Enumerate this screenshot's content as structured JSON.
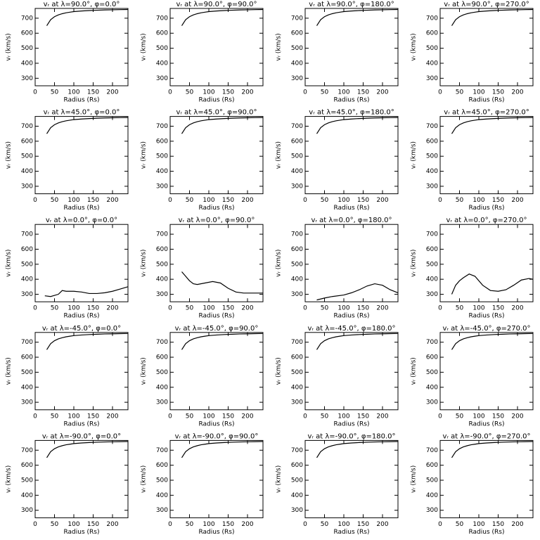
{
  "chart_data": [
    {
      "type": "line",
      "title": "vᵣ at λ=90.0°, φ=0.0°",
      "xlabel": "Radius (Rs)",
      "ylabel": "vᵣ (km/s)",
      "x": [
        30,
        40,
        50,
        60,
        70,
        80,
        90,
        100,
        120,
        140,
        160,
        180,
        200,
        220,
        240
      ],
      "values": [
        650,
        690,
        710,
        722,
        730,
        736,
        740,
        744,
        748,
        751,
        753,
        755,
        756,
        757,
        758
      ],
      "color": "#000000",
      "xlim": [
        0,
        240
      ],
      "ylim": [
        250,
        765
      ],
      "xticks": [
        0,
        50,
        100,
        150,
        200
      ],
      "yticks": [
        300,
        400,
        500,
        600,
        700
      ]
    },
    {
      "type": "line",
      "title": "vᵣ at λ=90.0°, φ=90.0°",
      "xlabel": "Radius (Rs)",
      "ylabel": "vᵣ (km/s)",
      "x": [
        30,
        40,
        50,
        60,
        70,
        80,
        90,
        100,
        120,
        140,
        160,
        180,
        200,
        220,
        240
      ],
      "values": [
        650,
        690,
        710,
        722,
        730,
        736,
        740,
        744,
        748,
        751,
        753,
        755,
        756,
        757,
        758
      ],
      "color": "#000000",
      "xlim": [
        0,
        240
      ],
      "ylim": [
        250,
        765
      ],
      "xticks": [
        0,
        50,
        100,
        150,
        200
      ],
      "yticks": [
        300,
        400,
        500,
        600,
        700
      ]
    },
    {
      "type": "line",
      "title": "vᵣ at λ=90.0°, φ=180.0°",
      "xlabel": "Radius (Rs)",
      "ylabel": "vᵣ (km/s)",
      "x": [
        30,
        40,
        50,
        60,
        70,
        80,
        90,
        100,
        120,
        140,
        160,
        180,
        200,
        220,
        240
      ],
      "values": [
        650,
        690,
        710,
        722,
        730,
        736,
        740,
        744,
        748,
        751,
        753,
        755,
        756,
        757,
        758
      ],
      "color": "#000000",
      "xlim": [
        0,
        240
      ],
      "ylim": [
        250,
        765
      ],
      "xticks": [
        0,
        50,
        100,
        150,
        200
      ],
      "yticks": [
        300,
        400,
        500,
        600,
        700
      ]
    },
    {
      "type": "line",
      "title": "vᵣ at λ=90.0°, φ=270.0°",
      "xlabel": "Radius (Rs)",
      "ylabel": "vᵣ (km/s)",
      "x": [
        30,
        40,
        50,
        60,
        70,
        80,
        90,
        100,
        120,
        140,
        160,
        180,
        200,
        220,
        240
      ],
      "values": [
        650,
        690,
        710,
        722,
        730,
        736,
        740,
        744,
        748,
        751,
        753,
        755,
        756,
        757,
        758
      ],
      "color": "#000000",
      "xlim": [
        0,
        240
      ],
      "ylim": [
        250,
        765
      ],
      "xticks": [
        0,
        50,
        100,
        150,
        200
      ],
      "yticks": [
        300,
        400,
        500,
        600,
        700
      ]
    },
    {
      "type": "line",
      "title": "vᵣ at λ=45.0°, φ=0.0°",
      "xlabel": "Radius (Rs)",
      "ylabel": "vᵣ (km/s)",
      "x": [
        30,
        40,
        50,
        60,
        70,
        80,
        90,
        100,
        120,
        140,
        160,
        180,
        200,
        220,
        240
      ],
      "values": [
        650,
        690,
        710,
        722,
        730,
        736,
        740,
        744,
        748,
        751,
        753,
        755,
        756,
        757,
        758
      ],
      "color": "#000000",
      "xlim": [
        0,
        240
      ],
      "ylim": [
        250,
        765
      ],
      "xticks": [
        0,
        50,
        100,
        150,
        200
      ],
      "yticks": [
        300,
        400,
        500,
        600,
        700
      ]
    },
    {
      "type": "line",
      "title": "vᵣ at λ=45.0°, φ=90.0°",
      "xlabel": "Radius (Rs)",
      "ylabel": "vᵣ (km/s)",
      "x": [
        30,
        40,
        50,
        60,
        70,
        80,
        90,
        100,
        120,
        140,
        160,
        180,
        200,
        220,
        240
      ],
      "values": [
        650,
        690,
        710,
        722,
        730,
        736,
        740,
        744,
        748,
        751,
        753,
        755,
        756,
        757,
        758
      ],
      "color": "#000000",
      "xlim": [
        0,
        240
      ],
      "ylim": [
        250,
        765
      ],
      "xticks": [
        0,
        50,
        100,
        150,
        200
      ],
      "yticks": [
        300,
        400,
        500,
        600,
        700
      ]
    },
    {
      "type": "line",
      "title": "vᵣ at λ=45.0°, φ=180.0°",
      "xlabel": "Radius (Rs)",
      "ylabel": "vᵣ (km/s)",
      "x": [
        30,
        40,
        50,
        60,
        70,
        80,
        90,
        100,
        120,
        140,
        160,
        180,
        200,
        220,
        240
      ],
      "values": [
        650,
        690,
        710,
        722,
        730,
        736,
        740,
        744,
        748,
        751,
        753,
        755,
        756,
        757,
        758
      ],
      "color": "#000000",
      "xlim": [
        0,
        240
      ],
      "ylim": [
        250,
        765
      ],
      "xticks": [
        0,
        50,
        100,
        150,
        200
      ],
      "yticks": [
        300,
        400,
        500,
        600,
        700
      ]
    },
    {
      "type": "line",
      "title": "vᵣ at λ=45.0°, φ=270.0°",
      "xlabel": "Radius (Rs)",
      "ylabel": "vᵣ (km/s)",
      "x": [
        30,
        40,
        50,
        60,
        70,
        80,
        90,
        100,
        120,
        140,
        160,
        180,
        200,
        220,
        240
      ],
      "values": [
        650,
        690,
        710,
        722,
        730,
        736,
        740,
        744,
        748,
        751,
        753,
        755,
        756,
        757,
        758
      ],
      "color": "#000000",
      "xlim": [
        0,
        240
      ],
      "ylim": [
        250,
        765
      ],
      "xticks": [
        0,
        50,
        100,
        150,
        200
      ],
      "yticks": [
        300,
        400,
        500,
        600,
        700
      ]
    },
    {
      "type": "line",
      "title": "vᵣ at λ=0.0°, φ=0.0°",
      "xlabel": "Radius (Rs)",
      "ylabel": "vᵣ (km/s)",
      "x": [
        25,
        40,
        60,
        70,
        80,
        100,
        120,
        140,
        160,
        180,
        200,
        220,
        240
      ],
      "values": [
        290,
        285,
        300,
        325,
        320,
        320,
        315,
        305,
        305,
        310,
        320,
        335,
        350
      ],
      "color": "#000000",
      "xlim": [
        0,
        240
      ],
      "ylim": [
        250,
        765
      ],
      "xticks": [
        0,
        50,
        100,
        150,
        200
      ],
      "yticks": [
        300,
        400,
        500,
        600,
        700
      ]
    },
    {
      "type": "line",
      "title": "vᵣ at λ=0.0°, φ=90.0°",
      "xlabel": "Radius (Rs)",
      "ylabel": "vᵣ (km/s)",
      "x": [
        30,
        40,
        50,
        60,
        70,
        90,
        110,
        130,
        150,
        170,
        190,
        220,
        240
      ],
      "values": [
        450,
        420,
        390,
        370,
        365,
        375,
        385,
        375,
        340,
        315,
        308,
        308,
        308
      ],
      "color": "#000000",
      "xlim": [
        0,
        240
      ],
      "ylim": [
        250,
        765
      ],
      "xticks": [
        0,
        50,
        100,
        150,
        200
      ],
      "yticks": [
        300,
        400,
        500,
        600,
        700
      ]
    },
    {
      "type": "line",
      "title": "vᵣ at λ=0.0°, φ=180.0°",
      "xlabel": "Radius (Rs)",
      "ylabel": "vᵣ (km/s)",
      "x": [
        30,
        50,
        70,
        100,
        120,
        140,
        160,
        180,
        200,
        220,
        240
      ],
      "values": [
        262,
        275,
        285,
        295,
        310,
        330,
        355,
        370,
        360,
        330,
        310
      ],
      "color": "#000000",
      "xlim": [
        0,
        240
      ],
      "ylim": [
        250,
        765
      ],
      "xticks": [
        0,
        50,
        100,
        150,
        200
      ],
      "yticks": [
        300,
        400,
        500,
        600,
        700
      ]
    },
    {
      "type": "line",
      "title": "vᵣ at λ=0.0°, φ=270.0°",
      "xlabel": "Radius (Rs)",
      "ylabel": "vᵣ (km/s)",
      "x": [
        30,
        40,
        50,
        60,
        75,
        90,
        110,
        130,
        150,
        170,
        190,
        210,
        230,
        240
      ],
      "values": [
        300,
        360,
        390,
        410,
        435,
        420,
        360,
        325,
        320,
        330,
        360,
        395,
        405,
        400
      ],
      "color": "#000000",
      "xlim": [
        0,
        240
      ],
      "ylim": [
        250,
        765
      ],
      "xticks": [
        0,
        50,
        100,
        150,
        200
      ],
      "yticks": [
        300,
        400,
        500,
        600,
        700
      ]
    },
    {
      "type": "line",
      "title": "vᵣ at λ=-45.0°, φ=0.0°",
      "xlabel": "Radius (Rs)",
      "ylabel": "vᵣ (km/s)",
      "x": [
        30,
        40,
        50,
        60,
        70,
        80,
        90,
        100,
        120,
        140,
        160,
        180,
        200,
        220,
        240
      ],
      "values": [
        650,
        690,
        710,
        722,
        730,
        736,
        740,
        744,
        748,
        751,
        753,
        755,
        756,
        757,
        758
      ],
      "color": "#000000",
      "xlim": [
        0,
        240
      ],
      "ylim": [
        250,
        765
      ],
      "xticks": [
        0,
        50,
        100,
        150,
        200
      ],
      "yticks": [
        300,
        400,
        500,
        600,
        700
      ]
    },
    {
      "type": "line",
      "title": "vᵣ at λ=-45.0°, φ=90.0°",
      "xlabel": "Radius (Rs)",
      "ylabel": "vᵣ (km/s)",
      "x": [
        30,
        40,
        50,
        60,
        70,
        80,
        90,
        100,
        120,
        140,
        160,
        180,
        200,
        220,
        240
      ],
      "values": [
        650,
        690,
        710,
        722,
        730,
        736,
        740,
        744,
        748,
        751,
        753,
        755,
        756,
        757,
        758
      ],
      "color": "#000000",
      "xlim": [
        0,
        240
      ],
      "ylim": [
        250,
        765
      ],
      "xticks": [
        0,
        50,
        100,
        150,
        200
      ],
      "yticks": [
        300,
        400,
        500,
        600,
        700
      ]
    },
    {
      "type": "line",
      "title": "vᵣ at λ=-45.0°, φ=180.0°",
      "xlabel": "Radius (Rs)",
      "ylabel": "vᵣ (km/s)",
      "x": [
        30,
        40,
        50,
        60,
        70,
        80,
        90,
        100,
        120,
        140,
        160,
        180,
        200,
        220,
        240
      ],
      "values": [
        650,
        690,
        710,
        722,
        730,
        736,
        740,
        744,
        748,
        751,
        753,
        755,
        756,
        757,
        758
      ],
      "color": "#000000",
      "xlim": [
        0,
        240
      ],
      "ylim": [
        250,
        765
      ],
      "xticks": [
        0,
        50,
        100,
        150,
        200
      ],
      "yticks": [
        300,
        400,
        500,
        600,
        700
      ]
    },
    {
      "type": "line",
      "title": "vᵣ at λ=-45.0°, φ=270.0°",
      "xlabel": "Radius (Rs)",
      "ylabel": "vᵣ (km/s)",
      "x": [
        30,
        40,
        50,
        60,
        70,
        80,
        90,
        100,
        120,
        140,
        160,
        180,
        200,
        220,
        240
      ],
      "values": [
        650,
        690,
        710,
        722,
        730,
        736,
        740,
        744,
        748,
        751,
        753,
        755,
        756,
        757,
        758
      ],
      "color": "#000000",
      "xlim": [
        0,
        240
      ],
      "ylim": [
        250,
        765
      ],
      "xticks": [
        0,
        50,
        100,
        150,
        200
      ],
      "yticks": [
        300,
        400,
        500,
        600,
        700
      ]
    },
    {
      "type": "line",
      "title": "vᵣ at λ=-90.0°, φ=0.0°",
      "xlabel": "Radius (Rs)",
      "ylabel": "vᵣ (km/s)",
      "x": [
        30,
        40,
        50,
        60,
        70,
        80,
        90,
        100,
        120,
        140,
        160,
        180,
        200,
        220,
        240
      ],
      "values": [
        650,
        690,
        710,
        722,
        730,
        736,
        740,
        744,
        748,
        751,
        753,
        755,
        756,
        757,
        758
      ],
      "color": "#000000",
      "xlim": [
        0,
        240
      ],
      "ylim": [
        250,
        765
      ],
      "xticks": [
        0,
        50,
        100,
        150,
        200
      ],
      "yticks": [
        300,
        400,
        500,
        600,
        700
      ]
    },
    {
      "type": "line",
      "title": "vᵣ at λ=-90.0°, φ=90.0°",
      "xlabel": "Radius (Rs)",
      "ylabel": "vᵣ (km/s)",
      "x": [
        30,
        40,
        50,
        60,
        70,
        80,
        90,
        100,
        120,
        140,
        160,
        180,
        200,
        220,
        240
      ],
      "values": [
        650,
        690,
        710,
        722,
        730,
        736,
        740,
        744,
        748,
        751,
        753,
        755,
        756,
        757,
        758
      ],
      "color": "#000000",
      "xlim": [
        0,
        240
      ],
      "ylim": [
        250,
        765
      ],
      "xticks": [
        0,
        50,
        100,
        150,
        200
      ],
      "yticks": [
        300,
        400,
        500,
        600,
        700
      ]
    },
    {
      "type": "line",
      "title": "vᵣ at λ=-90.0°, φ=180.0°",
      "xlabel": "Radius (Rs)",
      "ylabel": "vᵣ (km/s)",
      "x": [
        30,
        40,
        50,
        60,
        70,
        80,
        90,
        100,
        120,
        140,
        160,
        180,
        200,
        220,
        240
      ],
      "values": [
        650,
        690,
        710,
        722,
        730,
        736,
        740,
        744,
        748,
        751,
        753,
        755,
        756,
        757,
        758
      ],
      "color": "#000000",
      "xlim": [
        0,
        240
      ],
      "ylim": [
        250,
        765
      ],
      "xticks": [
        0,
        50,
        100,
        150,
        200
      ],
      "yticks": [
        300,
        400,
        500,
        600,
        700
      ]
    },
    {
      "type": "line",
      "title": "vᵣ at λ=-90.0°, φ=270.0°",
      "xlabel": "Radius (Rs)",
      "ylabel": "vᵣ (km/s)",
      "x": [
        30,
        40,
        50,
        60,
        70,
        80,
        90,
        100,
        120,
        140,
        160,
        180,
        200,
        220,
        240
      ],
      "values": [
        650,
        690,
        710,
        722,
        730,
        736,
        740,
        744,
        748,
        751,
        753,
        755,
        756,
        757,
        758
      ],
      "color": "#000000",
      "xlim": [
        0,
        240
      ],
      "ylim": [
        250,
        765
      ],
      "xticks": [
        0,
        50,
        100,
        150,
        200
      ],
      "yticks": [
        300,
        400,
        500,
        600,
        700
      ]
    }
  ]
}
